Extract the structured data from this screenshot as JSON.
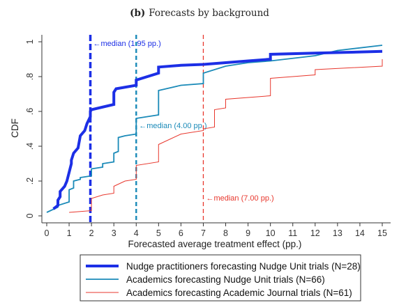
{
  "caption": {
    "letter": "(b)",
    "text": "Forecasts by background"
  },
  "chart_data": {
    "type": "line",
    "xlabel": "Forecasted average treatment effect (pp.)",
    "ylabel": "CDF",
    "xlim": [
      0,
      15
    ],
    "ylim": [
      0,
      1
    ],
    "xticks": [
      0,
      1,
      2,
      3,
      4,
      5,
      6,
      7,
      8,
      9,
      10,
      11,
      12,
      13,
      14,
      15
    ],
    "xtick_labels": [
      "0",
      "1",
      "2",
      "3",
      "4",
      "5",
      "6",
      "7",
      "8",
      "9",
      "10",
      "11",
      "12",
      "13",
      "14",
      "15"
    ],
    "yticks": [
      0,
      0.2,
      0.4,
      0.6,
      0.8,
      1
    ],
    "ytick_labels": [
      "0",
      ".2",
      ".4",
      ".6",
      ".8",
      "1"
    ],
    "grid": false,
    "legend_placement": "bottom",
    "series": [
      {
        "name": "Nudge practitioners forecasting Nudge Unit trials (N=28)",
        "color": "#1c2fe6",
        "style": "thick",
        "median": 1.95,
        "median_label": "←median (1.95 pp.)",
        "points": [
          [
            0.3,
            0.04
          ],
          [
            0.5,
            0.06
          ],
          [
            0.5,
            0.09
          ],
          [
            0.6,
            0.11
          ],
          [
            0.6,
            0.14
          ],
          [
            0.8,
            0.17
          ],
          [
            0.9,
            0.2
          ],
          [
            1.0,
            0.25
          ],
          [
            1.1,
            0.3
          ],
          [
            1.1,
            0.32
          ],
          [
            1.2,
            0.36
          ],
          [
            1.4,
            0.39
          ],
          [
            1.5,
            0.46
          ],
          [
            1.7,
            0.49
          ],
          [
            1.8,
            0.53
          ],
          [
            1.95,
            0.57
          ],
          [
            1.95,
            0.6
          ],
          [
            2.0,
            0.61
          ],
          [
            3.0,
            0.64
          ],
          [
            3.0,
            0.71
          ],
          [
            3.1,
            0.73
          ],
          [
            4.0,
            0.75
          ],
          [
            4.0,
            0.78
          ],
          [
            5.0,
            0.82
          ],
          [
            5.0,
            0.855
          ],
          [
            6.0,
            0.865
          ],
          [
            7.0,
            0.87
          ],
          [
            8.0,
            0.88
          ],
          [
            9.0,
            0.89
          ],
          [
            10.0,
            0.9
          ],
          [
            10.0,
            0.928
          ],
          [
            12.0,
            0.935
          ],
          [
            15.0,
            0.945
          ]
        ]
      },
      {
        "name": "Academics forecasting Nudge Unit trials (N=66)",
        "color": "#1a8ab8",
        "style": "medium",
        "median": 4.0,
        "median_label": "←median (4.00 pp.)",
        "points": [
          [
            0.0,
            0.02
          ],
          [
            0.5,
            0.05
          ],
          [
            0.5,
            0.06
          ],
          [
            1.0,
            0.08
          ],
          [
            1.0,
            0.15
          ],
          [
            1.2,
            0.16
          ],
          [
            1.2,
            0.2
          ],
          [
            1.5,
            0.21
          ],
          [
            1.5,
            0.22
          ],
          [
            2.0,
            0.23
          ],
          [
            2.0,
            0.27
          ],
          [
            2.5,
            0.28
          ],
          [
            2.5,
            0.3
          ],
          [
            3.0,
            0.31
          ],
          [
            3.0,
            0.36
          ],
          [
            3.2,
            0.37
          ],
          [
            3.2,
            0.45
          ],
          [
            3.5,
            0.46
          ],
          [
            4.0,
            0.47
          ],
          [
            4.0,
            0.56
          ],
          [
            5.0,
            0.58
          ],
          [
            5.0,
            0.72
          ],
          [
            6.0,
            0.75
          ],
          [
            7.0,
            0.76
          ],
          [
            7.0,
            0.82
          ],
          [
            8.0,
            0.86
          ],
          [
            9.0,
            0.88
          ],
          [
            10.0,
            0.89
          ],
          [
            12.0,
            0.92
          ],
          [
            13.0,
            0.95
          ],
          [
            15.0,
            0.98
          ]
        ]
      },
      {
        "name": "Academics forecasting Academic Journal trials (N=61)",
        "color": "#e8372d",
        "style": "thin",
        "median": 7.0,
        "median_label": "←median (7.00 pp.)",
        "points": [
          [
            1.0,
            0.02
          ],
          [
            2.0,
            0.03
          ],
          [
            2.0,
            0.1
          ],
          [
            2.5,
            0.12
          ],
          [
            3.0,
            0.13
          ],
          [
            3.0,
            0.17
          ],
          [
            3.5,
            0.2
          ],
          [
            4.0,
            0.21
          ],
          [
            4.0,
            0.29
          ],
          [
            5.0,
            0.31
          ],
          [
            5.0,
            0.41
          ],
          [
            6.0,
            0.47
          ],
          [
            7.0,
            0.49
          ],
          [
            7.0,
            0.5
          ],
          [
            7.5,
            0.51
          ],
          [
            7.5,
            0.61
          ],
          [
            8.0,
            0.62
          ],
          [
            8.0,
            0.67
          ],
          [
            10.0,
            0.69
          ],
          [
            10.0,
            0.79
          ],
          [
            11.0,
            0.8
          ],
          [
            12.0,
            0.81
          ],
          [
            12.0,
            0.84
          ],
          [
            15.0,
            0.86
          ],
          [
            15.0,
            0.9
          ]
        ]
      }
    ]
  }
}
